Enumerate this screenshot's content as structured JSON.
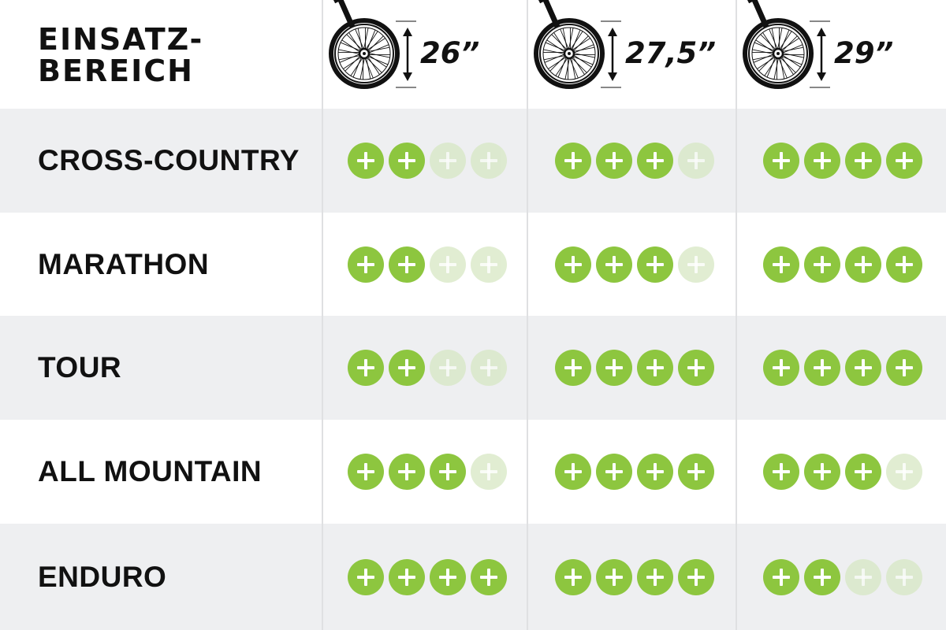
{
  "chart_data": {
    "type": "table",
    "title": "EINSATZ-BEREICH",
    "title_lines": [
      "EINSATZ-",
      "BEREICH"
    ],
    "columns": [
      "26”",
      "27,5”",
      "29”"
    ],
    "max_rating": 4,
    "rows": [
      {
        "label": "CROSS-COUNTRY",
        "ratings": [
          2,
          3,
          4
        ]
      },
      {
        "label": "MARATHON",
        "ratings": [
          2,
          3,
          4
        ]
      },
      {
        "label": "TOUR",
        "ratings": [
          2,
          4,
          4
        ]
      },
      {
        "label": "ALL MOUNTAIN",
        "ratings": [
          3,
          4,
          3
        ]
      },
      {
        "label": "ENDURO",
        "ratings": [
          4,
          4,
          2
        ]
      }
    ],
    "colors": {
      "plus_active": "#8dc63f",
      "plus_inactive": "#d7e8c4",
      "row_shaded": "#eeeff1",
      "row_plain": "#ffffff",
      "text": "#111111"
    },
    "icons": {
      "column_header": "bike-wheel-icon",
      "rating": "plus-circle-icon",
      "size_indicator": "double-arrow-vertical-icon"
    }
  }
}
